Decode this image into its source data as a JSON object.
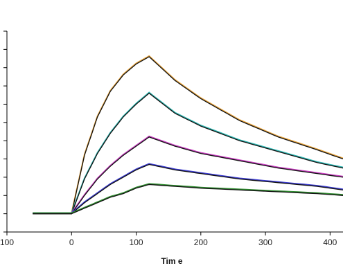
{
  "chart_data": {
    "type": "line",
    "title": "",
    "xlabel": "Tim e",
    "ylabel": "",
    "xlim": [
      -100,
      420
    ],
    "ylim": [
      -1,
      10
    ],
    "grid": false,
    "legend": "none",
    "x_ticks": [
      -100,
      0,
      100,
      200,
      300,
      400
    ],
    "x_tick_labels": [
      "100",
      "0",
      "100",
      "200",
      "300",
      "400"
    ],
    "y_tick_values": [
      -1,
      0,
      1,
      2,
      3,
      4,
      5,
      6,
      7,
      8,
      9,
      10
    ],
    "association": {
      "start": 0,
      "end": 120,
      "baseline_start": -60
    },
    "series": [
      {
        "color": "#e8a33a",
        "fit_color": "#111111",
        "x": [
          -60,
          0,
          20,
          40,
          60,
          80,
          100,
          120,
          160,
          200,
          260,
          320,
          380,
          420
        ],
        "y": [
          0,
          0,
          3.2,
          5.3,
          6.7,
          7.6,
          8.2,
          8.6,
          7.3,
          6.3,
          5.1,
          4.2,
          3.5,
          3.0
        ]
      },
      {
        "color": "#2bb5b0",
        "fit_color": "#111111",
        "x": [
          -60,
          0,
          20,
          40,
          60,
          80,
          100,
          120,
          160,
          200,
          260,
          320,
          380,
          420
        ],
        "y": [
          0,
          0,
          1.9,
          3.3,
          4.4,
          5.3,
          6.0,
          6.6,
          5.5,
          4.8,
          4.0,
          3.4,
          2.8,
          2.5
        ]
      },
      {
        "color": "#c83cc0",
        "fit_color": "#111111",
        "x": [
          -60,
          0,
          20,
          40,
          60,
          80,
          100,
          120,
          160,
          200,
          260,
          320,
          380,
          420
        ],
        "y": [
          0,
          0,
          1.0,
          1.9,
          2.6,
          3.2,
          3.7,
          4.2,
          3.7,
          3.3,
          2.9,
          2.5,
          2.2,
          2.0
        ]
      },
      {
        "color": "#3a3ad0",
        "fit_color": "#111111",
        "x": [
          -60,
          0,
          20,
          40,
          60,
          80,
          100,
          120,
          160,
          200,
          260,
          320,
          380,
          420
        ],
        "y": [
          0,
          0,
          0.6,
          1.1,
          1.6,
          2.0,
          2.4,
          2.7,
          2.4,
          2.2,
          1.9,
          1.7,
          1.5,
          1.3
        ]
      },
      {
        "color": "#2e8b2e",
        "fit_color": "#111111",
        "x": [
          -60,
          0,
          20,
          40,
          60,
          80,
          100,
          120,
          160,
          200,
          260,
          320,
          380,
          420
        ],
        "y": [
          0,
          0,
          0.3,
          0.6,
          0.9,
          1.1,
          1.4,
          1.6,
          1.5,
          1.4,
          1.3,
          1.2,
          1.1,
          1.0
        ]
      }
    ]
  }
}
